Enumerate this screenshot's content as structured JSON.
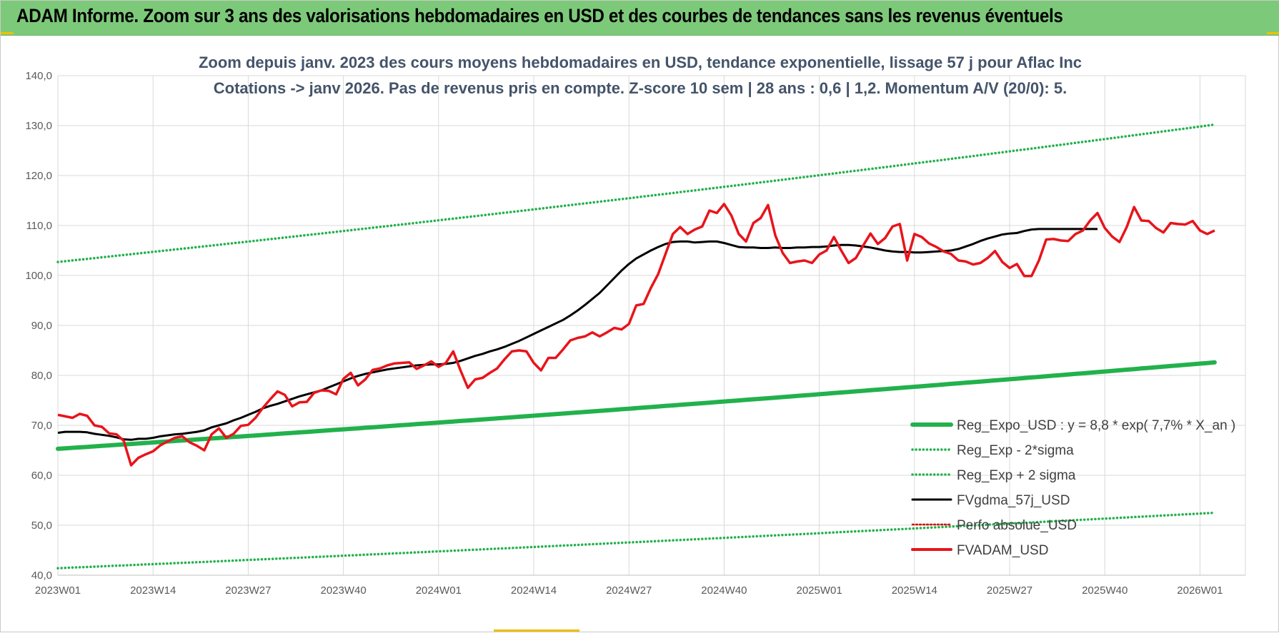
{
  "banner": {
    "title": "ADAM Informe. Zoom sur 3 ans des valorisations hebdomadaires en USD et des courbes de tendances sans les revenus éventuels"
  },
  "chart_data": {
    "type": "line",
    "title_line1": "Zoom depuis janv. 2023 des cours moyens hebdomadaires en USD, tendance exponentielle, lissage 57 j pour Aflac Inc",
    "title_line2": "Cotations -> janv 2026. Pas de revenus pris en compte. Z-score 10 sem | 28 ans : 0,6 | 1,2. Momentum A/V (20/0): 5.",
    "ylim": [
      40,
      140
    ],
    "y_ticks": [
      "40,0",
      "50,0",
      "60,0",
      "70,0",
      "80,0",
      "90,0",
      "100,0",
      "110,0",
      "120,0",
      "130,0",
      "140,0"
    ],
    "x_tick_labels": [
      "2023W01",
      "2023W14",
      "2023W27",
      "2023W40",
      "2024W01",
      "2024W14",
      "2024W27",
      "2024W40",
      "2025W01",
      "2025W14",
      "2025W27",
      "2025W40",
      "2026W01"
    ],
    "weeks_between_ticks": 13,
    "grid": true,
    "legend_position": "bottom-right",
    "colors": {
      "trend": "#22b14c",
      "band": "#22b14c",
      "smooth": "#000000",
      "perf": "#d40000",
      "price": "#e8141b",
      "axis_text": "#595959",
      "title_text": "#44546a",
      "grid": "#d9d9d9"
    },
    "series": [
      {
        "name": "Reg_Expo_USD : y = 8,8 * exp( 7,7% *  X_an )",
        "style": "solid-thick",
        "start": 65.3,
        "end": 82.6
      },
      {
        "name": "Reg_Exp - 2*sigma",
        "style": "dotted",
        "start": 41.4,
        "end": 52.5
      },
      {
        "name": "Reg_Exp + 2 sigma",
        "style": "dotted",
        "start": 102.7,
        "end": 130.2
      },
      {
        "name": "FVgdma_57j_USD",
        "style": "solid",
        "values": [
          68.5,
          68.7,
          68.7,
          68.7,
          68.6,
          68.3,
          68.1,
          67.9,
          67.6,
          67.2,
          67.1,
          67.3,
          67.3,
          67.5,
          67.8,
          68.0,
          68.2,
          68.3,
          68.5,
          68.7,
          69.0,
          69.6,
          70.0,
          70.4,
          71.0,
          71.5,
          72.1,
          72.7,
          73.4,
          73.9,
          74.3,
          74.8,
          75.3,
          75.8,
          76.2,
          76.6,
          77.0,
          77.6,
          78.2,
          78.8,
          79.4,
          79.9,
          80.3,
          80.6,
          80.9,
          81.2,
          81.4,
          81.6,
          81.8,
          82.0,
          82.1,
          82.2,
          82.2,
          82.3,
          82.5,
          82.9,
          83.4,
          83.9,
          84.3,
          84.8,
          85.2,
          85.7,
          86.3,
          86.9,
          87.6,
          88.3,
          89.0,
          89.7,
          90.4,
          91.1,
          92.0,
          93.0,
          94.1,
          95.3,
          96.5,
          98.0,
          99.5,
          101.0,
          102.3,
          103.4,
          104.2,
          105.0,
          105.7,
          106.3,
          106.7,
          106.8,
          106.8,
          106.6,
          106.7,
          106.8,
          106.8,
          106.5,
          106.1,
          105.7,
          105.6,
          105.6,
          105.5,
          105.5,
          105.6,
          105.5,
          105.5,
          105.6,
          105.6,
          105.7,
          105.7,
          105.8,
          106.0,
          106.1,
          106.1,
          106.0,
          105.8,
          105.6,
          105.3,
          105.0,
          104.8,
          104.7,
          104.7,
          104.6,
          104.6,
          104.7,
          104.8,
          104.9,
          105.0,
          105.3,
          105.8,
          106.3,
          106.9,
          107.4,
          107.8,
          108.2,
          108.4,
          108.5,
          108.9,
          109.2,
          109.3,
          109.3,
          109.3,
          109.3,
          109.3,
          109.3,
          109.3,
          109.3,
          109.3
        ]
      },
      {
        "name": "Perfo absolue_USD",
        "style": "dotted",
        "values": []
      },
      {
        "name": "FVADAM_USD",
        "style": "solid-thick",
        "values": [
          72.1,
          71.8,
          71.5,
          72.3,
          71.9,
          70.0,
          69.7,
          68.4,
          68.2,
          66.9,
          62.0,
          63.5,
          64.2,
          64.8,
          66.0,
          66.8,
          67.5,
          67.8,
          66.6,
          65.9,
          65.0,
          68.2,
          69.4,
          67.5,
          68.3,
          69.9,
          70.1,
          71.5,
          73.5,
          75.2,
          76.8,
          76.1,
          73.8,
          74.6,
          74.7,
          76.5,
          77.0,
          76.9,
          76.2,
          79.3,
          80.5,
          78.0,
          79.2,
          81.1,
          81.4,
          82.0,
          82.4,
          82.5,
          82.6,
          81.3,
          82.0,
          82.8,
          81.7,
          82.5,
          84.8,
          81.0,
          77.5,
          79.2,
          79.5,
          80.5,
          81.4,
          83.2,
          84.8,
          85.0,
          84.8,
          82.5,
          81.0,
          83.5,
          83.5,
          85.2,
          87.0,
          87.5,
          87.8,
          88.6,
          87.8,
          88.6,
          89.5,
          89.2,
          90.3,
          94.0,
          94.3,
          97.5,
          100.3,
          104.3,
          108.3,
          109.7,
          108.3,
          109.2,
          109.8,
          113.0,
          112.5,
          114.3,
          112.0,
          108.3,
          106.8,
          110.5,
          111.5,
          114.1,
          108.0,
          104.5,
          102.5,
          102.8,
          103.0,
          102.5,
          104.2,
          105.0,
          107.7,
          105.0,
          102.5,
          103.5,
          106.0,
          108.4,
          106.3,
          107.5,
          109.8,
          110.3,
          103.0,
          108.3,
          107.7,
          106.4,
          105.7,
          104.8,
          104.3,
          103.0,
          102.8,
          102.2,
          102.5,
          103.5,
          104.9,
          102.7,
          101.5,
          102.3,
          99.9,
          99.9,
          103.0,
          107.2,
          107.3,
          107.0,
          106.9,
          108.3,
          109.0,
          111.0,
          112.5,
          109.5,
          107.8,
          106.7,
          109.7,
          113.7,
          111.0,
          110.9,
          109.5,
          108.6,
          110.5,
          110.3,
          110.2,
          110.9,
          109.0,
          108.3,
          109.0
        ]
      }
    ]
  }
}
